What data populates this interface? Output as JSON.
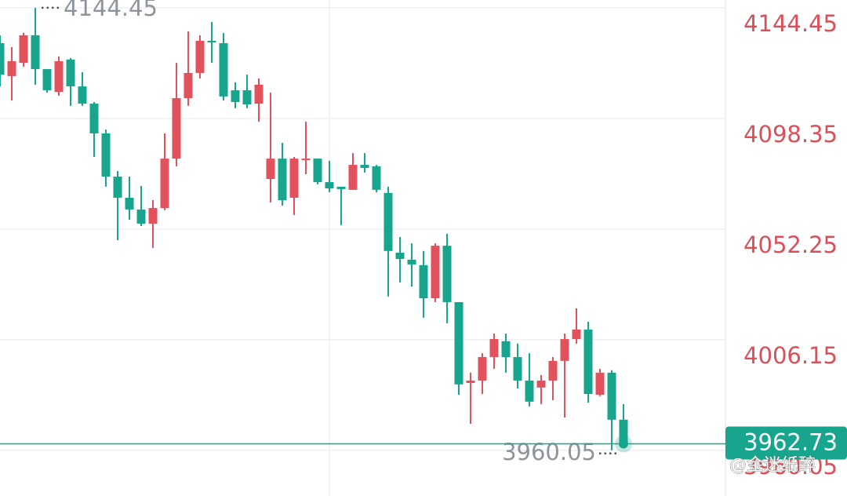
{
  "chart_data": {
    "type": "candlestick",
    "up_color": "#e2525c",
    "down_color": "#17a68d",
    "open": [
      4129.7,
      4116.0,
      4121.5,
      4133.0,
      4118.9,
      4109.4,
      4122.9,
      4111.7,
      4104.5,
      4092.1,
      4074.1,
      4065.3,
      4060.4,
      4054.5,
      4061.0,
      4081.6,
      4106.8,
      4117.3,
      4130.7,
      4129.7,
      4110.1,
      4110.1,
      4104.5,
      4073.1,
      4081.6,
      4065.3,
      4081.3,
      4081.6,
      4071.8,
      4069.9,
      4068.6,
      4079.0,
      4078.4,
      4067.3,
      4042.4,
      4039.5,
      4037.2,
      4023.4,
      4045.3,
      4021.8,
      3988.1,
      3989.1,
      3998.9,
      4005.5,
      3998.9,
      3989.1,
      3986.2,
      3989.1,
      3997.3,
      4006.4,
      4010.4,
      3983.2,
      3992.4,
      3972.8
    ],
    "high": [
      4133.0,
      4128.1,
      4134.0,
      4144.45,
      4118.9,
      4124.2,
      4123.5,
      4117.6,
      4105.2,
      4093.7,
      4076.4,
      4074.1,
      4070.2,
      4064.3,
      4092.1,
      4121.5,
      4134.6,
      4133.0,
      4138.5,
      4134.0,
      4113.4,
      4116.6,
      4115.0,
      4109.1,
      4088.2,
      4082.3,
      4097.0,
      4081.6,
      4080.7,
      4069.9,
      4083.9,
      4083.9,
      4079.0,
      4069.9,
      4048.9,
      4046.3,
      4043.1,
      4046.3,
      4050.3,
      4021.8,
      3992.4,
      4000.5,
      4008.7,
      4008.7,
      4004.5,
      4000.5,
      3991.4,
      3998.9,
      4008.7,
      4019.2,
      4013.6,
      3994.0,
      3993.4,
      3979.3
    ],
    "low": [
      4111.7,
      4105.8,
      4119.9,
      4112.4,
      4109.1,
      4107.8,
      4103.6,
      4103.6,
      4082.3,
      4069.9,
      4047.6,
      4056.1,
      4053.5,
      4044.4,
      4060.1,
      4078.4,
      4103.6,
      4115.0,
      4121.5,
      4105.8,
      4102.6,
      4102.6,
      4097.0,
      4063.3,
      4062.0,
      4058.1,
      4075.1,
      4070.9,
      4067.6,
      4053.9,
      4068.6,
      4075.8,
      4067.6,
      4024.1,
      4030.0,
      4028.3,
      4015.3,
      4021.8,
      4013.0,
      3983.2,
      3971.1,
      3983.5,
      3994.0,
      3992.4,
      3985.8,
      3978.3,
      3979.3,
      3980.9,
      3973.7,
      4004.5,
      3979.9,
      3982.6,
      3960.05,
      3962.73
    ],
    "close": [
      4116.6,
      4122.2,
      4133.0,
      4118.9,
      4110.1,
      4122.2,
      4111.7,
      4104.5,
      4092.1,
      4074.1,
      4065.3,
      4060.4,
      4054.5,
      4061.0,
      4081.6,
      4106.8,
      4117.3,
      4130.7,
      4130.0,
      4107.5,
      4105.2,
      4104.2,
      4112.4,
      4081.6,
      4064.3,
      4081.6,
      4081.6,
      4071.8,
      4069.2,
      4068.9,
      4079.0,
      4077.7,
      4068.6,
      4043.1,
      4039.8,
      4037.5,
      4023.4,
      4045.3,
      4021.8,
      3987.5,
      3989.1,
      3998.9,
      4006.4,
      3998.9,
      3989.1,
      3980.3,
      3989.1,
      3997.3,
      4006.4,
      4010.4,
      3983.5,
      3992.4,
      3972.8,
      3962.73
    ],
    "ylim": [
      3941.0,
      4147.7
    ],
    "yticks": [
      4144.45,
      4098.35,
      4052.25,
      4006.15,
      3960.05
    ],
    "grid": true,
    "high_label": 4144.45,
    "low_label": 3960.05,
    "last_price": 3962.73,
    "last_price_color": "#17a68d",
    "tick_label_color": "#d9505a",
    "watermark": "@金迷纸醉"
  }
}
